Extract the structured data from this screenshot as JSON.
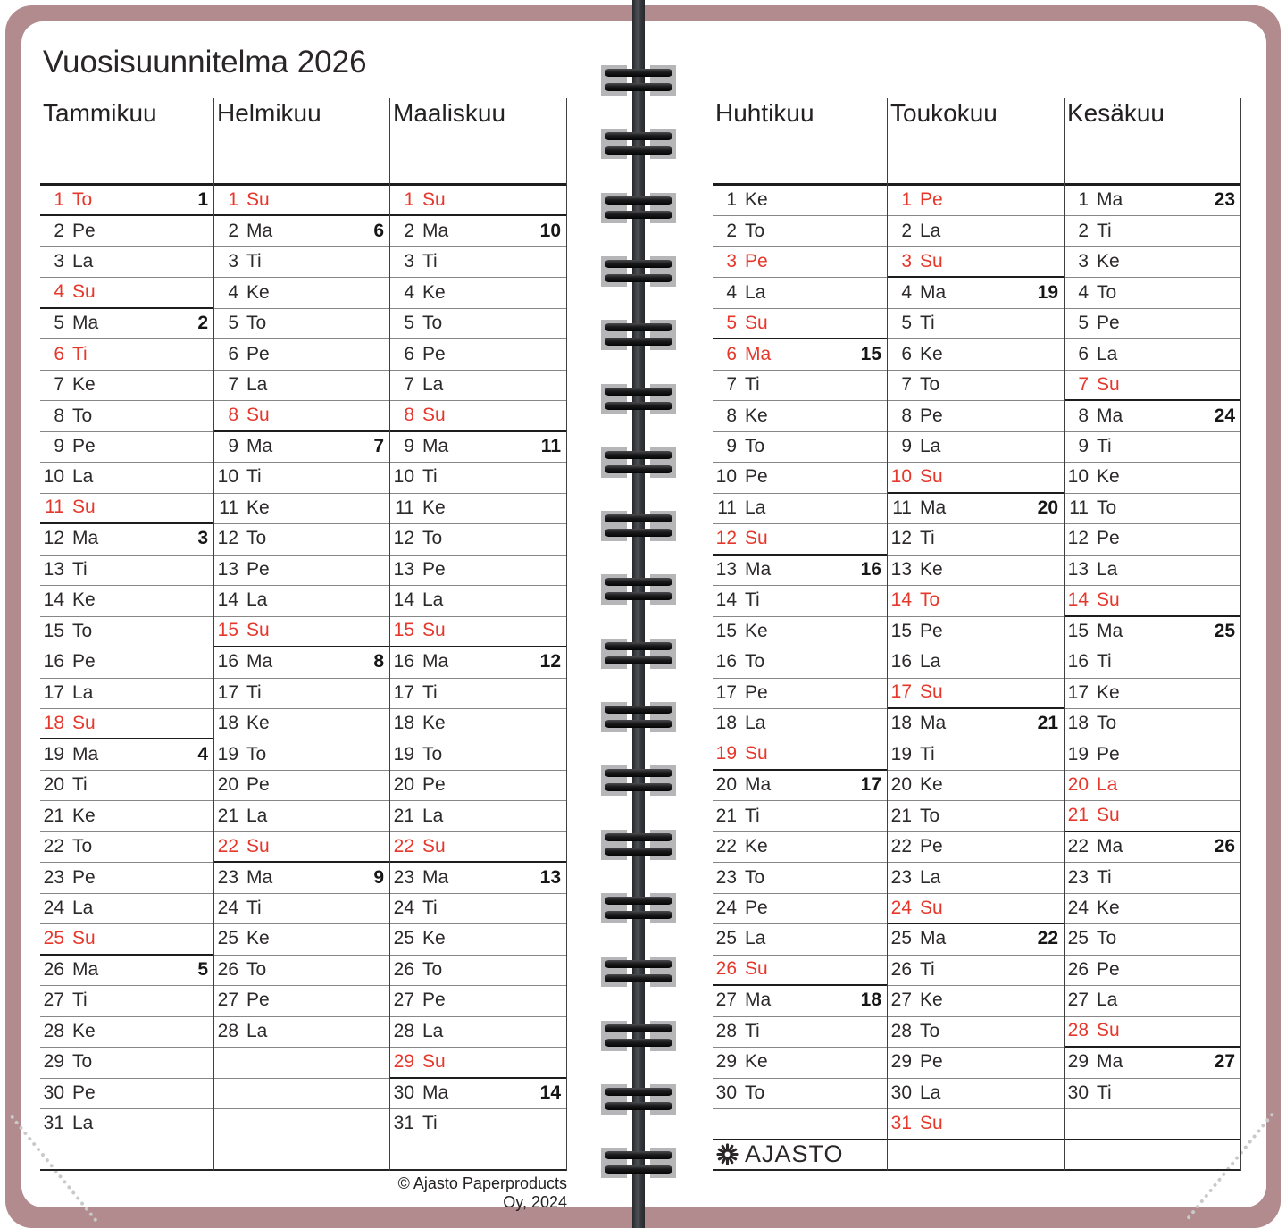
{
  "title": "Vuosisuunnitelma 2026",
  "copyright": "© Ajasto Paperproducts Oy, 2024",
  "brand": {
    "name": "AJASTO",
    "icon": "sun-rays-icon"
  },
  "colors": {
    "holiday_red": "#e6372b",
    "cover_mauve": "#b18b8d",
    "text": "#2c292a",
    "line_thin": "#878787",
    "line_thick": "#1d1d1d",
    "binding_tab_gray": "#b6b6b8",
    "binding_rod": "#33363a"
  },
  "weekday_abbreviations": [
    "Ma",
    "Ti",
    "Ke",
    "To",
    "Pe",
    "La",
    "Su"
  ],
  "day_format": "[day, weekday, is_red, week_number(0=none), thick_line_below]",
  "months": [
    {
      "name": "Tammikuu",
      "days": [
        [
          1,
          "To",
          1,
          1,
          1
        ],
        [
          2,
          "Pe",
          0,
          0,
          0
        ],
        [
          3,
          "La",
          0,
          0,
          0
        ],
        [
          4,
          "Su",
          1,
          0,
          1
        ],
        [
          5,
          "Ma",
          0,
          2,
          0
        ],
        [
          6,
          "Ti",
          1,
          0,
          0
        ],
        [
          7,
          "Ke",
          0,
          0,
          0
        ],
        [
          8,
          "To",
          0,
          0,
          0
        ],
        [
          9,
          "Pe",
          0,
          0,
          0
        ],
        [
          10,
          "La",
          0,
          0,
          0
        ],
        [
          11,
          "Su",
          1,
          0,
          1
        ],
        [
          12,
          "Ma",
          0,
          3,
          0
        ],
        [
          13,
          "Ti",
          0,
          0,
          0
        ],
        [
          14,
          "Ke",
          0,
          0,
          0
        ],
        [
          15,
          "To",
          0,
          0,
          0
        ],
        [
          16,
          "Pe",
          0,
          0,
          0
        ],
        [
          17,
          "La",
          0,
          0,
          0
        ],
        [
          18,
          "Su",
          1,
          0,
          1
        ],
        [
          19,
          "Ma",
          0,
          4,
          0
        ],
        [
          20,
          "Ti",
          0,
          0,
          0
        ],
        [
          21,
          "Ke",
          0,
          0,
          0
        ],
        [
          22,
          "To",
          0,
          0,
          0
        ],
        [
          23,
          "Pe",
          0,
          0,
          0
        ],
        [
          24,
          "La",
          0,
          0,
          0
        ],
        [
          25,
          "Su",
          1,
          0,
          1
        ],
        [
          26,
          "Ma",
          0,
          5,
          0
        ],
        [
          27,
          "Ti",
          0,
          0,
          0
        ],
        [
          28,
          "Ke",
          0,
          0,
          0
        ],
        [
          29,
          "To",
          0,
          0,
          0
        ],
        [
          30,
          "Pe",
          0,
          0,
          0
        ],
        [
          31,
          "La",
          0,
          0,
          0
        ]
      ],
      "extra_rows": [
        {
          "type": "empty",
          "thick": 0
        }
      ]
    },
    {
      "name": "Helmikuu",
      "days": [
        [
          1,
          "Su",
          1,
          0,
          1
        ],
        [
          2,
          "Ma",
          0,
          6,
          0
        ],
        [
          3,
          "Ti",
          0,
          0,
          0
        ],
        [
          4,
          "Ke",
          0,
          0,
          0
        ],
        [
          5,
          "To",
          0,
          0,
          0
        ],
        [
          6,
          "Pe",
          0,
          0,
          0
        ],
        [
          7,
          "La",
          0,
          0,
          0
        ],
        [
          8,
          "Su",
          1,
          0,
          1
        ],
        [
          9,
          "Ma",
          0,
          7,
          0
        ],
        [
          10,
          "Ti",
          0,
          0,
          0
        ],
        [
          11,
          "Ke",
          0,
          0,
          0
        ],
        [
          12,
          "To",
          0,
          0,
          0
        ],
        [
          13,
          "Pe",
          0,
          0,
          0
        ],
        [
          14,
          "La",
          0,
          0,
          0
        ],
        [
          15,
          "Su",
          1,
          0,
          1
        ],
        [
          16,
          "Ma",
          0,
          8,
          0
        ],
        [
          17,
          "Ti",
          0,
          0,
          0
        ],
        [
          18,
          "Ke",
          0,
          0,
          0
        ],
        [
          19,
          "To",
          0,
          0,
          0
        ],
        [
          20,
          "Pe",
          0,
          0,
          0
        ],
        [
          21,
          "La",
          0,
          0,
          0
        ],
        [
          22,
          "Su",
          1,
          0,
          1
        ],
        [
          23,
          "Ma",
          0,
          9,
          0
        ],
        [
          24,
          "Ti",
          0,
          0,
          0
        ],
        [
          25,
          "Ke",
          0,
          0,
          0
        ],
        [
          26,
          "To",
          0,
          0,
          0
        ],
        [
          27,
          "Pe",
          0,
          0,
          0
        ],
        [
          28,
          "La",
          0,
          0,
          0
        ]
      ],
      "extra_rows": [
        {
          "type": "empty",
          "thick": 0
        },
        {
          "type": "empty",
          "thick": 0
        },
        {
          "type": "empty",
          "thick": 0
        },
        {
          "type": "empty",
          "thick": 0
        }
      ]
    },
    {
      "name": "Maaliskuu",
      "days": [
        [
          1,
          "Su",
          1,
          0,
          1
        ],
        [
          2,
          "Ma",
          0,
          10,
          0
        ],
        [
          3,
          "Ti",
          0,
          0,
          0
        ],
        [
          4,
          "Ke",
          0,
          0,
          0
        ],
        [
          5,
          "To",
          0,
          0,
          0
        ],
        [
          6,
          "Pe",
          0,
          0,
          0
        ],
        [
          7,
          "La",
          0,
          0,
          0
        ],
        [
          8,
          "Su",
          1,
          0,
          1
        ],
        [
          9,
          "Ma",
          0,
          11,
          0
        ],
        [
          10,
          "Ti",
          0,
          0,
          0
        ],
        [
          11,
          "Ke",
          0,
          0,
          0
        ],
        [
          12,
          "To",
          0,
          0,
          0
        ],
        [
          13,
          "Pe",
          0,
          0,
          0
        ],
        [
          14,
          "La",
          0,
          0,
          0
        ],
        [
          15,
          "Su",
          1,
          0,
          1
        ],
        [
          16,
          "Ma",
          0,
          12,
          0
        ],
        [
          17,
          "Ti",
          0,
          0,
          0
        ],
        [
          18,
          "Ke",
          0,
          0,
          0
        ],
        [
          19,
          "To",
          0,
          0,
          0
        ],
        [
          20,
          "Pe",
          0,
          0,
          0
        ],
        [
          21,
          "La",
          0,
          0,
          0
        ],
        [
          22,
          "Su",
          1,
          0,
          1
        ],
        [
          23,
          "Ma",
          0,
          13,
          0
        ],
        [
          24,
          "Ti",
          0,
          0,
          0
        ],
        [
          25,
          "Ke",
          0,
          0,
          0
        ],
        [
          26,
          "To",
          0,
          0,
          0
        ],
        [
          27,
          "Pe",
          0,
          0,
          0
        ],
        [
          28,
          "La",
          0,
          0,
          0
        ],
        [
          29,
          "Su",
          1,
          0,
          1
        ],
        [
          30,
          "Ma",
          0,
          14,
          0
        ],
        [
          31,
          "Ti",
          0,
          0,
          0
        ]
      ],
      "extra_rows": [
        {
          "type": "empty",
          "thick": 0
        }
      ]
    },
    {
      "name": "Huhtikuu",
      "days": [
        [
          1,
          "Ke",
          0,
          0,
          0
        ],
        [
          2,
          "To",
          0,
          0,
          0
        ],
        [
          3,
          "Pe",
          1,
          0,
          0
        ],
        [
          4,
          "La",
          0,
          0,
          0
        ],
        [
          5,
          "Su",
          1,
          0,
          1
        ],
        [
          6,
          "Ma",
          1,
          15,
          0
        ],
        [
          7,
          "Ti",
          0,
          0,
          0
        ],
        [
          8,
          "Ke",
          0,
          0,
          0
        ],
        [
          9,
          "To",
          0,
          0,
          0
        ],
        [
          10,
          "Pe",
          0,
          0,
          0
        ],
        [
          11,
          "La",
          0,
          0,
          0
        ],
        [
          12,
          "Su",
          1,
          0,
          1
        ],
        [
          13,
          "Ma",
          0,
          16,
          0
        ],
        [
          14,
          "Ti",
          0,
          0,
          0
        ],
        [
          15,
          "Ke",
          0,
          0,
          0
        ],
        [
          16,
          "To",
          0,
          0,
          0
        ],
        [
          17,
          "Pe",
          0,
          0,
          0
        ],
        [
          18,
          "La",
          0,
          0,
          0
        ],
        [
          19,
          "Su",
          1,
          0,
          1
        ],
        [
          20,
          "Ma",
          0,
          17,
          0
        ],
        [
          21,
          "Ti",
          0,
          0,
          0
        ],
        [
          22,
          "Ke",
          0,
          0,
          0
        ],
        [
          23,
          "To",
          0,
          0,
          0
        ],
        [
          24,
          "Pe",
          0,
          0,
          0
        ],
        [
          25,
          "La",
          0,
          0,
          0
        ],
        [
          26,
          "Su",
          1,
          0,
          1
        ],
        [
          27,
          "Ma",
          0,
          18,
          0
        ],
        [
          28,
          "Ti",
          0,
          0,
          0
        ],
        [
          29,
          "Ke",
          0,
          0,
          0
        ],
        [
          30,
          "To",
          0,
          0,
          0
        ]
      ],
      "extra_rows": [
        {
          "type": "empty",
          "thick": 1
        },
        {
          "type": "logo",
          "thick": 0
        }
      ]
    },
    {
      "name": "Toukokuu",
      "days": [
        [
          1,
          "Pe",
          1,
          0,
          0
        ],
        [
          2,
          "La",
          0,
          0,
          0
        ],
        [
          3,
          "Su",
          1,
          0,
          1
        ],
        [
          4,
          "Ma",
          0,
          19,
          0
        ],
        [
          5,
          "Ti",
          0,
          0,
          0
        ],
        [
          6,
          "Ke",
          0,
          0,
          0
        ],
        [
          7,
          "To",
          0,
          0,
          0
        ],
        [
          8,
          "Pe",
          0,
          0,
          0
        ],
        [
          9,
          "La",
          0,
          0,
          0
        ],
        [
          10,
          "Su",
          1,
          0,
          1
        ],
        [
          11,
          "Ma",
          0,
          20,
          0
        ],
        [
          12,
          "Ti",
          0,
          0,
          0
        ],
        [
          13,
          "Ke",
          0,
          0,
          0
        ],
        [
          14,
          "To",
          1,
          0,
          0
        ],
        [
          15,
          "Pe",
          0,
          0,
          0
        ],
        [
          16,
          "La",
          0,
          0,
          0
        ],
        [
          17,
          "Su",
          1,
          0,
          1
        ],
        [
          18,
          "Ma",
          0,
          21,
          0
        ],
        [
          19,
          "Ti",
          0,
          0,
          0
        ],
        [
          20,
          "Ke",
          0,
          0,
          0
        ],
        [
          21,
          "To",
          0,
          0,
          0
        ],
        [
          22,
          "Pe",
          0,
          0,
          0
        ],
        [
          23,
          "La",
          0,
          0,
          0
        ],
        [
          24,
          "Su",
          1,
          0,
          1
        ],
        [
          25,
          "Ma",
          0,
          22,
          0
        ],
        [
          26,
          "Ti",
          0,
          0,
          0
        ],
        [
          27,
          "Ke",
          0,
          0,
          0
        ],
        [
          28,
          "To",
          0,
          0,
          0
        ],
        [
          29,
          "Pe",
          0,
          0,
          0
        ],
        [
          30,
          "La",
          0,
          0,
          0
        ],
        [
          31,
          "Su",
          1,
          0,
          1
        ]
      ],
      "extra_rows": [
        {
          "type": "empty",
          "thick": 0
        }
      ]
    },
    {
      "name": "Kesäkuu",
      "days": [
        [
          1,
          "Ma",
          0,
          23,
          0
        ],
        [
          2,
          "Ti",
          0,
          0,
          0
        ],
        [
          3,
          "Ke",
          0,
          0,
          0
        ],
        [
          4,
          "To",
          0,
          0,
          0
        ],
        [
          5,
          "Pe",
          0,
          0,
          0
        ],
        [
          6,
          "La",
          0,
          0,
          0
        ],
        [
          7,
          "Su",
          1,
          0,
          1
        ],
        [
          8,
          "Ma",
          0,
          24,
          0
        ],
        [
          9,
          "Ti",
          0,
          0,
          0
        ],
        [
          10,
          "Ke",
          0,
          0,
          0
        ],
        [
          11,
          "To",
          0,
          0,
          0
        ],
        [
          12,
          "Pe",
          0,
          0,
          0
        ],
        [
          13,
          "La",
          0,
          0,
          0
        ],
        [
          14,
          "Su",
          1,
          0,
          1
        ],
        [
          15,
          "Ma",
          0,
          25,
          0
        ],
        [
          16,
          "Ti",
          0,
          0,
          0
        ],
        [
          17,
          "Ke",
          0,
          0,
          0
        ],
        [
          18,
          "To",
          0,
          0,
          0
        ],
        [
          19,
          "Pe",
          0,
          0,
          0
        ],
        [
          20,
          "La",
          1,
          0,
          0
        ],
        [
          21,
          "Su",
          1,
          0,
          1
        ],
        [
          22,
          "Ma",
          0,
          26,
          0
        ],
        [
          23,
          "Ti",
          0,
          0,
          0
        ],
        [
          24,
          "Ke",
          0,
          0,
          0
        ],
        [
          25,
          "To",
          0,
          0,
          0
        ],
        [
          26,
          "Pe",
          0,
          0,
          0
        ],
        [
          27,
          "La",
          0,
          0,
          0
        ],
        [
          28,
          "Su",
          1,
          0,
          1
        ],
        [
          29,
          "Ma",
          0,
          27,
          0
        ],
        [
          30,
          "Ti",
          0,
          0,
          0
        ]
      ],
      "extra_rows": [
        {
          "type": "empty",
          "thick": 1
        },
        {
          "type": "empty",
          "thick": 0
        }
      ]
    }
  ]
}
